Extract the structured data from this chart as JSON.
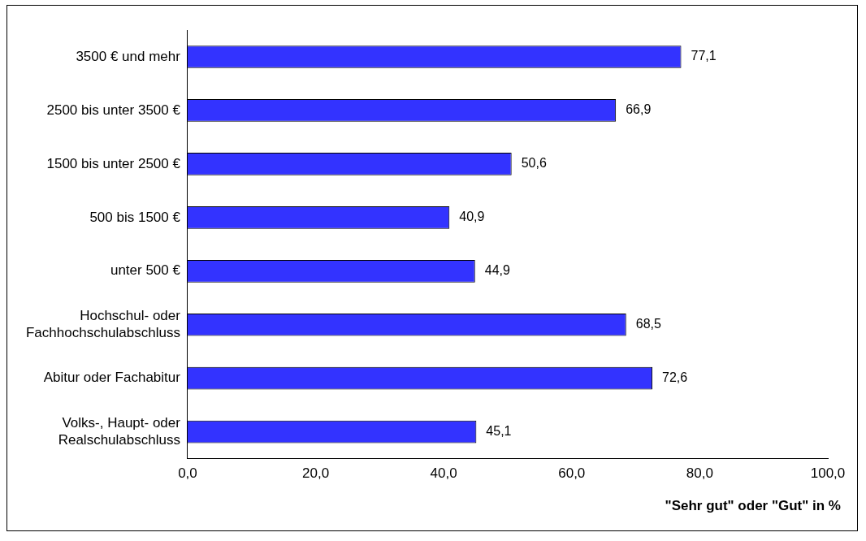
{
  "chart_data": {
    "type": "bar",
    "orientation": "horizontal",
    "categories": [
      "3500 € und mehr",
      "2500 bis unter 3500 €",
      "1500 bis unter 2500 €",
      "500 bis 1500 €",
      "unter 500 €",
      "Hochschul- oder Fachhochschulabschluss",
      "Abitur oder Fachabitur",
      "Volks-, Haupt- oder Realschulabschluss"
    ],
    "values": [
      77.1,
      66.9,
      50.6,
      40.9,
      44.9,
      68.5,
      72.6,
      45.1
    ],
    "value_labels": [
      "77,1",
      "66,9",
      "50,6",
      "40,9",
      "44,9",
      "68,5",
      "72,6",
      "45,1"
    ],
    "color": "#3333ff",
    "xlim": [
      0,
      100
    ],
    "xticks": [
      {
        "value": 0,
        "label": "0,0"
      },
      {
        "value": 20,
        "label": "20,0"
      },
      {
        "value": 40,
        "label": "40,0"
      },
      {
        "value": 60,
        "label": "60,0"
      },
      {
        "value": 80,
        "label": "80,0"
      },
      {
        "value": 100,
        "label": "100,0"
      }
    ],
    "xlabel": "\"Sehr gut\" oder \"Gut\" in %",
    "grid": false,
    "legend": false
  }
}
